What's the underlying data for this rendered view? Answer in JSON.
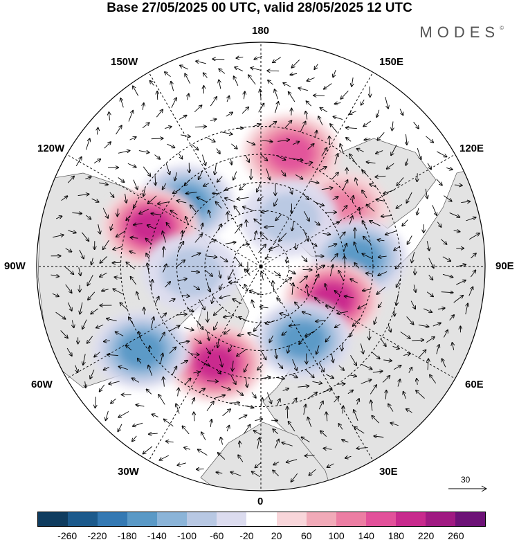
{
  "title": "Base 27/05/2025 00 UTC, valid 28/05/2025 12 UTC",
  "logo": {
    "text": "MODES",
    "mark": "©"
  },
  "longitude_labels": {
    "top": "180",
    "bottom": "0",
    "left": "90W",
    "right": "90E",
    "upper_left_1": "150W",
    "upper_left_2": "120W",
    "upper_right_1": "150E",
    "upper_right_2": "120E",
    "lower_left_1": "60W",
    "lower_left_2": "30W",
    "lower_right_1": "60E",
    "lower_right_2": "30E"
  },
  "reference_vector": {
    "label": "30"
  },
  "colorbar": {
    "colors": [
      "#0f3c5f",
      "#1c5a8c",
      "#3479b3",
      "#5a99c6",
      "#8bb4d8",
      "#b8c8e3",
      "#dcdcef",
      "#ffffff",
      "#f8d6da",
      "#f1aab8",
      "#ec7ea3",
      "#e2519a",
      "#c82a8d",
      "#a01a82",
      "#6d1277"
    ],
    "ticks": [
      "-260",
      "-220",
      "-180",
      "-140",
      "-100",
      "-60",
      "-20",
      "20",
      "60",
      "100",
      "140",
      "180",
      "220",
      "260"
    ]
  },
  "anomaly_centers": [
    {
      "lon": 165,
      "lat": 48,
      "value": 160
    },
    {
      "lon": -130,
      "lat": 55,
      "value": -150
    },
    {
      "lon": -110,
      "lat": 48,
      "value": 200
    },
    {
      "lon": 125,
      "lat": 55,
      "value": 110
    },
    {
      "lon": 95,
      "lat": 55,
      "value": -170
    },
    {
      "lon": 65,
      "lat": 62,
      "value": 190
    },
    {
      "lon": 30,
      "lat": 60,
      "value": -160
    },
    {
      "lon": -25,
      "lat": 52,
      "value": 180
    },
    {
      "lon": -55,
      "lat": 38,
      "value": -150
    },
    {
      "lon": -85,
      "lat": 65,
      "value": -60
    },
    {
      "lon": 150,
      "lat": 70,
      "value": -70
    }
  ]
}
